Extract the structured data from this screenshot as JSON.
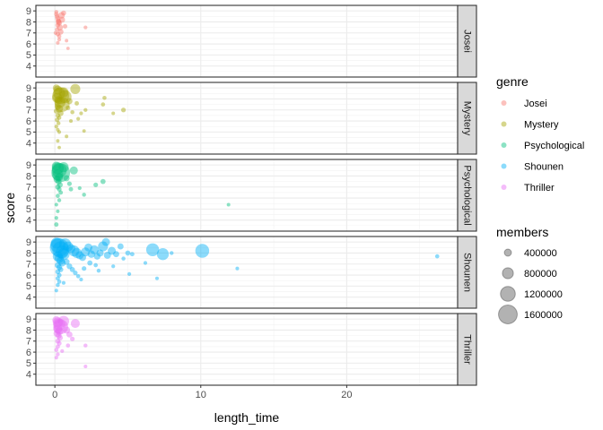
{
  "chart_data": {
    "type": "scatter",
    "xlabel": "length_time",
    "ylabel": "score",
    "xlim": [
      -1.3,
      27.6
    ],
    "ylim": [
      3.0,
      9.5
    ],
    "x_ticks": [
      0,
      10,
      20
    ],
    "y_ticks": [
      4,
      5,
      6,
      7,
      8,
      9
    ],
    "grid": true,
    "legend_position": "right",
    "color_legend": {
      "title": "genre",
      "entries": [
        {
          "label": "Josei",
          "color": "#F8766D"
        },
        {
          "label": "Mystery",
          "color": "#A3A500"
        },
        {
          "label": "Psychological",
          "color": "#00BF7D"
        },
        {
          "label": "Shounen",
          "color": "#00B0F6"
        },
        {
          "label": "Thriller",
          "color": "#E76BF3"
        }
      ]
    },
    "size_legend": {
      "title": "members",
      "entries": [
        {
          "label": "400000",
          "value": 400000
        },
        {
          "label": "800000",
          "value": 800000
        },
        {
          "label": "1200000",
          "value": 1200000
        },
        {
          "label": "1600000",
          "value": 1600000
        }
      ]
    },
    "series": [
      {
        "name": "Josei",
        "color": "#F8766D",
        "points": [
          [
            0.1,
            8.7,
            120000
          ],
          [
            0.15,
            8.5,
            150000
          ],
          [
            0.2,
            8.3,
            200000
          ],
          [
            0.25,
            8.1,
            180000
          ],
          [
            0.3,
            7.9,
            220000
          ],
          [
            0.2,
            7.7,
            160000
          ],
          [
            0.35,
            7.5,
            300000
          ],
          [
            0.15,
            7.3,
            100000
          ],
          [
            0.4,
            7.1,
            250000
          ],
          [
            0.2,
            6.9,
            140000
          ],
          [
            0.3,
            6.7,
            110000
          ],
          [
            0.1,
            8.9,
            90000
          ],
          [
            0.25,
            8.0,
            260000
          ],
          [
            0.45,
            8.6,
            350000
          ],
          [
            0.5,
            8.2,
            280000
          ],
          [
            0.6,
            8.8,
            190000
          ],
          [
            0.3,
            6.4,
            60000
          ],
          [
            0.2,
            6.1,
            40000
          ],
          [
            0.7,
            7.6,
            130000
          ],
          [
            0.05,
            7.0,
            70000
          ],
          [
            0.8,
            6.3,
            30000
          ],
          [
            0.9,
            5.6,
            20000
          ],
          [
            2.1,
            7.5,
            60000
          ]
        ]
      },
      {
        "name": "Mystery",
        "color": "#A3A500",
        "points": [
          [
            0.1,
            9.0,
            400000
          ],
          [
            0.2,
            8.8,
            600000
          ],
          [
            0.3,
            8.5,
            900000
          ],
          [
            0.4,
            8.3,
            1400000
          ],
          [
            0.15,
            8.1,
            700000
          ],
          [
            0.25,
            7.9,
            500000
          ],
          [
            0.35,
            7.7,
            800000
          ],
          [
            0.5,
            7.5,
            1200000
          ],
          [
            0.2,
            7.3,
            300000
          ],
          [
            0.3,
            7.1,
            450000
          ],
          [
            0.1,
            6.9,
            200000
          ],
          [
            0.4,
            6.7,
            250000
          ],
          [
            0.2,
            6.5,
            150000
          ],
          [
            0.3,
            6.3,
            100000
          ],
          [
            0.15,
            6.1,
            120000
          ],
          [
            0.25,
            5.8,
            80000
          ],
          [
            0.1,
            5.5,
            60000
          ],
          [
            0.2,
            5.2,
            40000
          ],
          [
            0.3,
            5.0,
            50000
          ],
          [
            0.6,
            8.6,
            700000
          ],
          [
            0.7,
            8.2,
            1000000
          ],
          [
            1.4,
            8.9,
            700000
          ],
          [
            1.0,
            7.8,
            300000
          ],
          [
            0.9,
            7.2,
            150000
          ],
          [
            1.5,
            7.6,
            120000
          ],
          [
            1.2,
            6.8,
            90000
          ],
          [
            1.8,
            6.7,
            60000
          ],
          [
            1.6,
            6.2,
            50000
          ],
          [
            2.1,
            7.0,
            70000
          ],
          [
            1.1,
            6.0,
            40000
          ],
          [
            3.4,
            8.1,
            90000
          ],
          [
            3.3,
            7.5,
            100000
          ],
          [
            4.7,
            7.0,
            150000
          ],
          [
            4.0,
            6.7,
            40000
          ],
          [
            2.0,
            5.1,
            30000
          ],
          [
            0.2,
            4.2,
            30000
          ],
          [
            0.3,
            3.6,
            20000
          ],
          [
            0.8,
            4.6,
            40000
          ]
        ]
      },
      {
        "name": "Psychological",
        "color": "#00BF7D",
        "points": [
          [
            0.1,
            8.9,
            600000
          ],
          [
            0.2,
            8.7,
            900000
          ],
          [
            0.3,
            8.5,
            1200000
          ],
          [
            0.4,
            8.3,
            1600000
          ],
          [
            0.2,
            8.1,
            800000
          ],
          [
            0.3,
            7.9,
            500000
          ],
          [
            0.15,
            7.7,
            400000
          ],
          [
            0.25,
            7.5,
            300000
          ],
          [
            0.35,
            7.2,
            250000
          ],
          [
            0.2,
            7.0,
            200000
          ],
          [
            0.3,
            6.8,
            150000
          ],
          [
            0.4,
            6.5,
            120000
          ],
          [
            0.2,
            6.2,
            100000
          ],
          [
            0.3,
            5.8,
            80000
          ],
          [
            0.1,
            5.4,
            50000
          ],
          [
            0.2,
            4.8,
            40000
          ],
          [
            0.1,
            4.2,
            60000
          ],
          [
            0.1,
            3.6,
            120000
          ],
          [
            0.6,
            8.8,
            700000
          ],
          [
            1.3,
            8.5,
            500000
          ],
          [
            0.8,
            7.8,
            300000
          ],
          [
            1.0,
            7.3,
            150000
          ],
          [
            1.1,
            6.8,
            120000
          ],
          [
            2.8,
            7.2,
            150000
          ],
          [
            3.3,
            7.5,
            200000
          ],
          [
            1.7,
            6.9,
            60000
          ],
          [
            2.0,
            6.3,
            80000
          ],
          [
            11.9,
            5.4,
            40000
          ]
        ]
      },
      {
        "name": "Shounen",
        "color": "#00B0F6",
        "points": [
          [
            0.1,
            8.9,
            800000
          ],
          [
            0.2,
            8.7,
            1200000
          ],
          [
            0.3,
            8.5,
            1600000
          ],
          [
            0.4,
            8.3,
            1400000
          ],
          [
            0.5,
            8.1,
            1000000
          ],
          [
            0.6,
            7.9,
            900000
          ],
          [
            0.2,
            7.7,
            700000
          ],
          [
            0.3,
            7.5,
            600000
          ],
          [
            0.4,
            7.3,
            500000
          ],
          [
            0.5,
            7.1,
            400000
          ],
          [
            0.2,
            6.9,
            300000
          ],
          [
            0.3,
            6.7,
            250000
          ],
          [
            0.4,
            6.5,
            200000
          ],
          [
            0.2,
            6.3,
            180000
          ],
          [
            0.3,
            6.0,
            150000
          ],
          [
            0.2,
            5.7,
            120000
          ],
          [
            0.3,
            5.4,
            100000
          ],
          [
            0.2,
            5.1,
            80000
          ],
          [
            0.1,
            4.6,
            50000
          ],
          [
            0.7,
            8.8,
            900000
          ],
          [
            0.9,
            8.6,
            700000
          ],
          [
            1.1,
            8.4,
            600000
          ],
          [
            1.3,
            8.2,
            800000
          ],
          [
            1.5,
            8.0,
            700000
          ],
          [
            1.7,
            7.8,
            500000
          ],
          [
            1.9,
            7.6,
            400000
          ],
          [
            2.1,
            8.1,
            600000
          ],
          [
            2.3,
            8.5,
            500000
          ],
          [
            2.5,
            7.9,
            450000
          ],
          [
            2.7,
            8.3,
            600000
          ],
          [
            2.9,
            7.7,
            350000
          ],
          [
            3.1,
            8.0,
            400000
          ],
          [
            3.3,
            8.6,
            700000
          ],
          [
            3.6,
            7.8,
            400000
          ],
          [
            3.9,
            8.2,
            500000
          ],
          [
            4.2,
            7.9,
            300000
          ],
          [
            4.5,
            8.6,
            300000
          ],
          [
            5.0,
            8.0,
            200000
          ],
          [
            5.3,
            7.9,
            120000
          ],
          [
            4.7,
            7.5,
            80000
          ],
          [
            3.5,
            9.0,
            500000
          ],
          [
            0.8,
            7.2,
            300000
          ],
          [
            1.0,
            6.8,
            250000
          ],
          [
            1.2,
            6.5,
            200000
          ],
          [
            1.4,
            6.2,
            150000
          ],
          [
            1.6,
            5.9,
            100000
          ],
          [
            2.0,
            6.6,
            150000
          ],
          [
            2.4,
            7.1,
            200000
          ],
          [
            2.8,
            6.9,
            100000
          ],
          [
            3.0,
            6.4,
            80000
          ],
          [
            1.8,
            5.6,
            60000
          ],
          [
            0.6,
            5.3,
            60000
          ],
          [
            5.1,
            6.1,
            60000
          ],
          [
            7.0,
            5.7,
            40000
          ],
          [
            6.7,
            8.3,
            1000000
          ],
          [
            7.4,
            7.9,
            900000
          ],
          [
            10.1,
            8.2,
            1100000
          ],
          [
            12.5,
            6.6,
            40000
          ],
          [
            26.2,
            7.7,
            100000
          ],
          [
            6.2,
            7.1,
            60000
          ],
          [
            4.0,
            6.8,
            60000
          ],
          [
            8.0,
            8.0,
            80000
          ]
        ]
      },
      {
        "name": "Thriller",
        "color": "#E76BF3",
        "points": [
          [
            0.1,
            8.9,
            500000
          ],
          [
            0.2,
            8.7,
            700000
          ],
          [
            0.3,
            8.5,
            900000
          ],
          [
            0.4,
            8.3,
            1200000
          ],
          [
            0.2,
            8.1,
            600000
          ],
          [
            0.3,
            7.9,
            500000
          ],
          [
            0.15,
            7.7,
            400000
          ],
          [
            0.25,
            7.5,
            300000
          ],
          [
            0.35,
            7.3,
            250000
          ],
          [
            0.2,
            7.0,
            200000
          ],
          [
            0.3,
            6.8,
            150000
          ],
          [
            0.2,
            6.5,
            120000
          ],
          [
            0.1,
            6.2,
            100000
          ],
          [
            0.2,
            5.8,
            80000
          ],
          [
            0.1,
            5.5,
            50000
          ],
          [
            0.6,
            8.8,
            800000
          ],
          [
            1.4,
            8.6,
            600000
          ],
          [
            0.8,
            8.0,
            400000
          ],
          [
            1.0,
            7.6,
            300000
          ],
          [
            1.2,
            7.2,
            150000
          ],
          [
            0.9,
            6.6,
            100000
          ],
          [
            2.1,
            6.6,
            80000
          ],
          [
            0.5,
            6.1,
            60000
          ],
          [
            2.1,
            4.7,
            40000
          ]
        ]
      }
    ]
  }
}
